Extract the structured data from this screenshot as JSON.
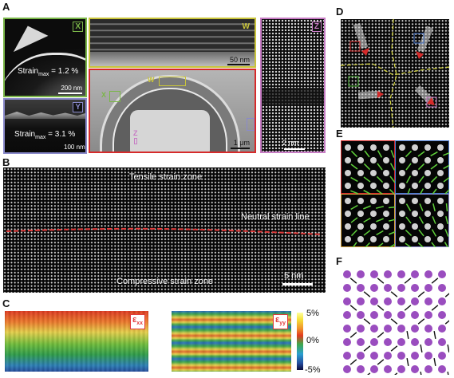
{
  "panel_labels": {
    "a": "A",
    "b": "B",
    "c": "C",
    "d": "D",
    "e": "E",
    "f": "F"
  },
  "panel_a": {
    "inset_x": {
      "tag": "X",
      "strain": "Strain",
      "sub": "max",
      "value": " = 1.2 %",
      "scale": "200 nm"
    },
    "inset_y": {
      "tag": "Y",
      "strain": "Strain",
      "sub": "max",
      "value": " = 3.1 %",
      "scale": "100 nm"
    },
    "inset_w": {
      "tag": "W",
      "scale": "50 nm"
    },
    "overview": {
      "w": "W",
      "x": "X",
      "z": "Z",
      "scale": "1 μm"
    },
    "inset_z": {
      "tag": "Z",
      "scale": "2 nm"
    },
    "colors": {
      "x": "#7ab648",
      "y": "#8a8acb",
      "w": "#c9c43a",
      "z": "#c77cc4",
      "overview": "#d62a2a"
    }
  },
  "panel_b": {
    "tensile": "Tensile strain zone",
    "neutral": "Neutral strain line",
    "compressive": "Compressive strain zone",
    "scale": "5 nm",
    "neutral_color": "#e23a3a"
  },
  "panel_c": {
    "exx_main": "ε",
    "exx_sub": "xx",
    "eyy_main": "ε",
    "eyy_sub": "yy",
    "colorbar_ticks": [
      "5%",
      "0%",
      "-5%"
    ]
  },
  "panel_f": {
    "atom_color": "#9a4dbf"
  }
}
